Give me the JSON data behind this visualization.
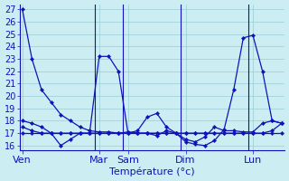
{
  "background_color": "#cceef2",
  "grid_color": "#99ccd6",
  "line_color": "#1111bb",
  "xlabel": "Température (°c)",
  "xlabel_fontsize": 8,
  "tick_label_fontsize": 7,
  "ylim": [
    15.6,
    27.4
  ],
  "yticks": [
    16,
    17,
    18,
    19,
    20,
    21,
    22,
    23,
    24,
    25,
    26,
    27
  ],
  "day_labels": [
    "Ven",
    "Mar",
    "Sam",
    "Dim",
    "Lun"
  ],
  "n_points": 28,
  "xlim": [
    -0.3,
    27.3
  ],
  "day_x_positions": [
    0,
    8,
    11,
    17,
    24
  ],
  "vline_x": [
    7.5,
    10.5,
    16.5,
    23.5
  ],
  "series": [
    [
      27,
      23,
      20.5,
      19.5,
      18.5,
      18.0,
      17.5,
      17.2,
      17.1,
      17.1,
      17.0,
      17.1,
      17.0,
      17.0,
      16.8,
      17.2,
      17.0,
      16.3,
      16.1,
      16.0,
      16.4,
      17.3,
      20.5,
      24.7,
      24.9,
      22.0,
      18.0,
      17.8
    ],
    [
      18.0,
      17.8,
      17.5,
      17.0,
      16.0,
      16.5,
      17.0,
      17.0,
      17.0,
      17.0,
      17.0,
      17.0,
      17.2,
      18.3,
      18.6,
      17.5,
      17.0,
      16.5,
      16.3,
      16.7,
      17.5,
      17.2,
      17.2,
      17.1,
      17.1,
      17.8,
      18.0,
      17.8
    ],
    [
      17.5,
      17.2,
      17.0,
      17.0,
      17.0,
      17.0,
      17.0,
      17.0,
      23.2,
      23.2,
      22.0,
      17.0,
      17.0,
      17.0,
      17.0,
      17.0,
      17.0,
      17.0,
      17.0,
      17.0,
      17.0,
      17.0,
      17.0,
      17.0,
      17.0,
      17.0,
      17.2,
      17.8
    ],
    [
      17.0,
      17.0,
      17.0,
      17.0,
      17.0,
      17.0,
      17.0,
      17.0,
      17.0,
      17.0,
      17.0,
      17.0,
      17.0,
      17.0,
      17.0,
      17.0,
      17.0,
      17.0,
      17.0,
      17.0,
      17.0,
      17.0,
      17.0,
      17.0,
      17.0,
      17.0,
      17.0,
      17.0
    ]
  ]
}
